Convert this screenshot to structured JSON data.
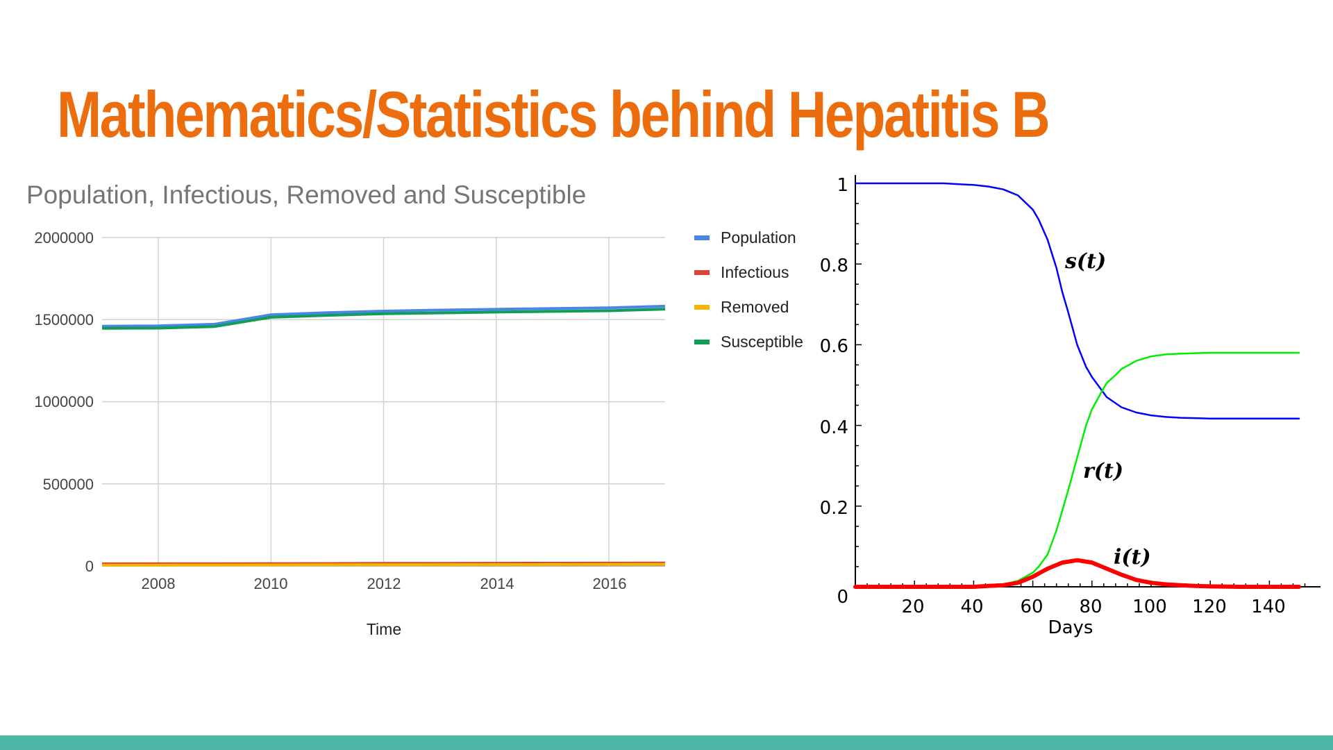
{
  "slide": {
    "title": "Mathematics/Statistics behind Hepatitis B",
    "title_color": "#ec6d0d",
    "footer_color": "#4db6a5"
  },
  "chart_data": [
    {
      "type": "line",
      "title": "Population, Infectious, Removed and Susceptible",
      "xlabel": "Time",
      "ylabel": "",
      "x": [
        2007,
        2008,
        2009,
        2010,
        2011,
        2012,
        2013,
        2014,
        2015,
        2016,
        2017
      ],
      "xticks": [
        "2008",
        "2010",
        "2012",
        "2014",
        "2016"
      ],
      "xtick_values": [
        2008,
        2010,
        2012,
        2014,
        2016
      ],
      "yticks": [
        "2000000",
        "1500000",
        "1000000",
        "500000",
        "0"
      ],
      "ytick_values": [
        2000000,
        1500000,
        1000000,
        500000,
        0
      ],
      "xlim": [
        2007,
        2017
      ],
      "ylim": [
        0,
        2000000
      ],
      "grid": true,
      "legend_position": "right",
      "series": [
        {
          "name": "Population",
          "color": "#4a86e8",
          "values": [
            1460000,
            1462000,
            1472000,
            1530000,
            1542000,
            1552000,
            1558000,
            1563000,
            1568000,
            1572000,
            1582000
          ]
        },
        {
          "name": "Infectious",
          "color": "#db4437",
          "values": [
            13000,
            13500,
            14000,
            14500,
            15000,
            15500,
            16000,
            16500,
            17000,
            17500,
            18000
          ]
        },
        {
          "name": "Removed",
          "color": "#f4b400",
          "values": [
            5000,
            5500,
            6000,
            6500,
            7000,
            7500,
            8000,
            8500,
            9000,
            9500,
            10000
          ]
        },
        {
          "name": "Susceptible",
          "color": "#0f9d58",
          "values": [
            1447000,
            1448000,
            1458000,
            1514000,
            1526000,
            1536000,
            1541000,
            1546000,
            1550000,
            1554000,
            1564000
          ]
        }
      ]
    },
    {
      "type": "line",
      "title": "",
      "xlabel": "Days",
      "ylabel": "",
      "xlim": [
        0,
        150
      ],
      "ylim": [
        0,
        1
      ],
      "xticks": [
        "20",
        "40",
        "60",
        "80",
        "100",
        "120",
        "140"
      ],
      "xtick_values": [
        20,
        40,
        60,
        80,
        100,
        120,
        140
      ],
      "yticks": [
        "1",
        "0.8",
        "0.6",
        "0.4",
        "0.2",
        "0"
      ],
      "ytick_values": [
        1,
        0.8,
        0.6,
        0.4,
        0.2,
        0
      ],
      "grid": false,
      "series": [
        {
          "name": "s(t)",
          "color": "#0000ff",
          "x": [
            0,
            10,
            20,
            30,
            35,
            40,
            45,
            50,
            55,
            60,
            62,
            65,
            68,
            70,
            72,
            75,
            78,
            80,
            83,
            85,
            88,
            90,
            95,
            100,
            105,
            110,
            115,
            120,
            130,
            140,
            150
          ],
          "values": [
            1.0,
            1.0,
            1.0,
            1.0,
            0.998,
            0.996,
            0.992,
            0.985,
            0.97,
            0.935,
            0.91,
            0.86,
            0.79,
            0.73,
            0.68,
            0.6,
            0.545,
            0.52,
            0.49,
            0.47,
            0.455,
            0.445,
            0.432,
            0.425,
            0.421,
            0.419,
            0.418,
            0.417,
            0.417,
            0.417,
            0.417
          ]
        },
        {
          "name": "r(t)",
          "color": "#00ee00",
          "x": [
            0,
            40,
            45,
            50,
            55,
            60,
            62,
            65,
            68,
            70,
            72,
            75,
            78,
            80,
            83,
            85,
            88,
            90,
            95,
            100,
            105,
            110,
            115,
            120,
            130,
            140,
            150
          ],
          "values": [
            0,
            0,
            0.002,
            0.006,
            0.015,
            0.035,
            0.05,
            0.08,
            0.14,
            0.19,
            0.24,
            0.32,
            0.4,
            0.44,
            0.48,
            0.505,
            0.525,
            0.54,
            0.56,
            0.571,
            0.576,
            0.578,
            0.579,
            0.58,
            0.58,
            0.58,
            0.58
          ]
        },
        {
          "name": "i(t)",
          "color": "#ff0000",
          "x": [
            0,
            40,
            45,
            50,
            55,
            60,
            65,
            70,
            75,
            80,
            85,
            90,
            95,
            100,
            105,
            110,
            115,
            120,
            130,
            140,
            150
          ],
          "values": [
            0,
            0,
            0.002,
            0.004,
            0.01,
            0.025,
            0.045,
            0.06,
            0.066,
            0.06,
            0.045,
            0.03,
            0.017,
            0.01,
            0.006,
            0.004,
            0.002,
            0.001,
            0,
            0,
            0
          ]
        }
      ],
      "annotations": [
        {
          "text": "s(t)",
          "x": 76,
          "y": 0.8
        },
        {
          "text": "r(t)",
          "x": 82,
          "y": 0.28
        },
        {
          "text": "i(t)",
          "x": 92,
          "y": 0.07
        }
      ]
    }
  ]
}
